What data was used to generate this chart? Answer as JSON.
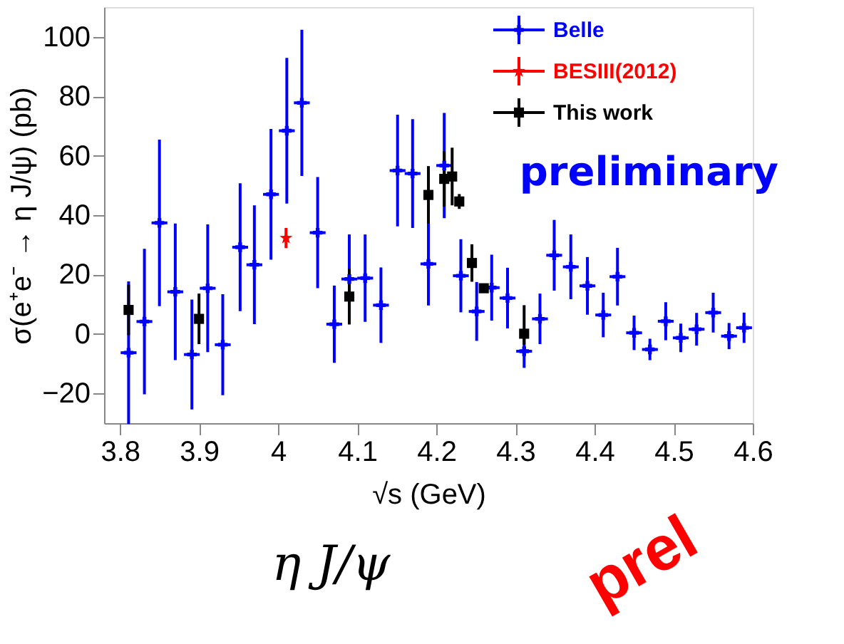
{
  "chart_data": {
    "type": "scatter",
    "xlabel": "√s (GeV)",
    "ylabel": "σ(e⁺e⁻ → η J/ψ) (pb)",
    "xlim": [
      3.78,
      4.6
    ],
    "xticks": [
      3.8,
      3.9,
      4,
      4.1,
      4.2,
      4.3,
      4.4,
      4.5,
      4.6
    ],
    "ylim": [
      -30,
      110
    ],
    "yticks": [
      -20,
      0,
      20,
      40,
      60,
      80,
      100
    ],
    "grid": false,
    "legend": "top right",
    "series": [
      {
        "name": "Belle",
        "color": "#0000ff",
        "marker": "cross",
        "x": [
          3.811,
          3.831,
          3.85,
          3.87,
          3.891,
          3.911,
          3.93,
          3.952,
          3.97,
          3.991,
          4.011,
          4.03,
          4.05,
          4.071,
          4.09,
          4.11,
          4.13,
          4.151,
          4.17,
          4.19,
          4.21,
          4.231,
          4.251,
          4.27,
          4.29,
          4.311,
          4.331,
          4.349,
          4.37,
          4.391,
          4.411,
          4.429,
          4.45,
          4.47,
          4.49,
          4.509,
          4.529,
          4.55,
          4.57,
          4.589
        ],
        "values": [
          -6.3,
          4.2,
          37.4,
          14.2,
          -6.9,
          15.4,
          -3.6,
          29.2,
          23.3,
          47.0,
          68.4,
          77.8,
          34.1,
          3.3,
          18.5,
          18.8,
          9.7,
          55.0,
          54.0,
          23.6,
          56.7,
          19.6,
          7.6,
          15.6,
          12.1,
          -5.8,
          5.1,
          26.5,
          22.6,
          16.2,
          6.4,
          19.3,
          0.4,
          -5.2,
          4.3,
          -1.3,
          1.6,
          7.2,
          -0.7,
          2.1
        ],
        "errors": [
          24,
          24.5,
          28,
          23,
          18.5,
          21.5,
          17,
          21.5,
          20,
          22,
          24.5,
          24.6,
          18.7,
          13,
          15,
          14.7,
          12.7,
          18.8,
          18.3,
          14,
          17.7,
          12.3,
          9.9,
          11.1,
          10.2,
          5.6,
          8.5,
          11.9,
          10.9,
          9.7,
          7.5,
          9.7,
          5.8,
          3.6,
          6.4,
          4.8,
          5.5,
          6.7,
          4.4,
          5.1
        ],
        "xerrors": [
          0.01,
          0.01,
          0.01,
          0.01,
          0.01,
          0.01,
          0.01,
          0.01,
          0.01,
          0.01,
          0.01,
          0.01,
          0.01,
          0.01,
          0.01,
          0.01,
          0.01,
          0.01,
          0.01,
          0.01,
          0.01,
          0.01,
          0.01,
          0.01,
          0.01,
          0.01,
          0.01,
          0.01,
          0.01,
          0.01,
          0.01,
          0.01,
          0.01,
          0.01,
          0.01,
          0.01,
          0.01,
          0.01,
          0.01,
          0.01
        ]
      },
      {
        "name": "BESIII(2012)",
        "color": "#ff0000",
        "marker": "star",
        "x": [
          4.01
        ],
        "values": [
          32.3
        ],
        "errors": [
          3.4
        ],
        "xerrors": [
          0.003
        ]
      },
      {
        "name": "This work",
        "color": "#000000",
        "marker": "square",
        "x": [
          3.811,
          3.9,
          4.09,
          4.19,
          4.21,
          4.22,
          4.229,
          4.245,
          4.26,
          4.311
        ],
        "values": [
          8.1,
          5.1,
          12.6,
          46.8,
          52.2,
          53.0,
          44.6,
          23.9,
          15.4,
          0.1
        ],
        "errors": [
          8.5,
          8.5,
          9.4,
          9.7,
          9.3,
          9.7,
          2.5,
          6.3,
          1.5,
          [
            -3.6,
            9.7
          ]
        ],
        "xerrors": [
          0.005,
          0.005,
          0.005,
          0.005,
          0.005,
          0.005,
          0.005,
          0.005,
          0.005,
          0.005
        ]
      }
    ],
    "annotations": [
      "preliminary",
      "η J/ψ",
      "prel"
    ]
  }
}
